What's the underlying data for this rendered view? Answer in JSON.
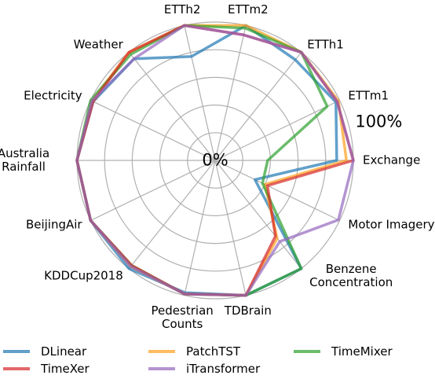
{
  "chart_data": {
    "type": "radar",
    "categories": [
      "Exchange",
      "ETTm1",
      "ETTh1",
      "ETTm2",
      "ETTh2",
      "Weather",
      "Electricity",
      "Australia Rainfall",
      "BeijingAir",
      "KDDCup2018",
      "Pedestrian Counts",
      "TDBrain",
      "Benzene Concentration",
      "Motor Imagery"
    ],
    "series": [
      {
        "name": "DLinear",
        "color": "#1f77b4",
        "values": [
          88,
          97,
          93,
          100,
          77,
          94,
          98,
          100,
          100,
          100,
          98,
          100,
          100,
          32
        ]
      },
      {
        "name": "PatchTST",
        "color": "#ff9f1c",
        "values": [
          95,
          99,
          100,
          100,
          100,
          100,
          99,
          100,
          100,
          98,
          99,
          100,
          72,
          40
        ]
      },
      {
        "name": "TimeMixer",
        "color": "#2ca02c",
        "values": [
          38,
          90,
          100,
          98,
          100,
          98,
          100,
          100,
          100,
          97,
          99,
          100,
          100,
          38
        ]
      },
      {
        "name": "TimeXer",
        "color": "#d62728",
        "values": [
          100,
          98,
          100,
          93,
          100,
          100,
          98,
          100,
          100,
          97,
          99,
          100,
          70,
          42
        ]
      },
      {
        "name": "iTransformer",
        "color": "#9467bd",
        "values": [
          100,
          98,
          100,
          93,
          100,
          94,
          99,
          100,
          100,
          98,
          99,
          100,
          75,
          99
        ]
      }
    ],
    "rlim": [
      0,
      100
    ],
    "rticks": [
      {
        "value": 0,
        "label": "0%"
      },
      {
        "value": 100,
        "label": "100%"
      }
    ],
    "rgrid": [
      20,
      40,
      60,
      80,
      100
    ],
    "grid": true,
    "legend": "bottom"
  }
}
